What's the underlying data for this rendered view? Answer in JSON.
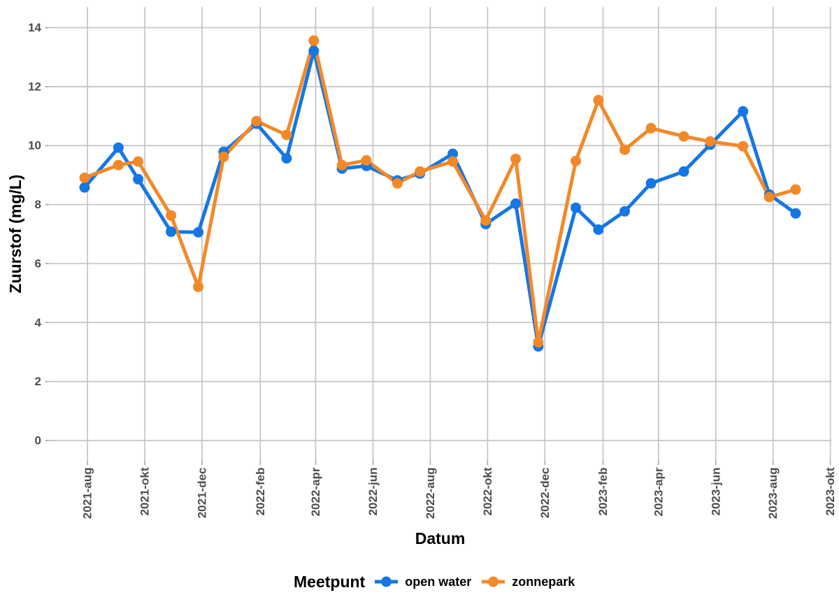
{
  "chart_data": {
    "type": "line",
    "xlabel": "Datum",
    "ylabel": "Zuurstof (mg/L)",
    "xlim": [
      "2021-06-21",
      "2023-10-02"
    ],
    "ylim": [
      -0.7,
      14.7
    ],
    "grid": true,
    "x_ticks": [
      {
        "value": "2021-08-01",
        "label": "2021-aug"
      },
      {
        "value": "2021-10-01",
        "label": "2021-okt"
      },
      {
        "value": "2021-12-01",
        "label": "2021-dec"
      },
      {
        "value": "2022-02-01",
        "label": "2022-feb"
      },
      {
        "value": "2022-04-01",
        "label": "2022-apr"
      },
      {
        "value": "2022-06-01",
        "label": "2022-jun"
      },
      {
        "value": "2022-08-01",
        "label": "2022-aug"
      },
      {
        "value": "2022-10-01",
        "label": "2022-okt"
      },
      {
        "value": "2022-12-01",
        "label": "2022-dec"
      },
      {
        "value": "2023-02-01",
        "label": "2023-feb"
      },
      {
        "value": "2023-04-01",
        "label": "2023-apr"
      },
      {
        "value": "2023-06-01",
        "label": "2023-jun"
      },
      {
        "value": "2023-08-01",
        "label": "2023-aug"
      },
      {
        "value": "2023-10-01",
        "label": "2023-okt"
      }
    ],
    "y_ticks": [
      0,
      2,
      4,
      6,
      8,
      10,
      12,
      14
    ],
    "legend": {
      "title": "Meetpunt",
      "position": "bottom"
    },
    "x": [
      "2021-07-29",
      "2021-09-03",
      "2021-09-24",
      "2021-10-29",
      "2021-11-27",
      "2021-12-24",
      "2022-01-28",
      "2022-03-01",
      "2022-03-30",
      "2022-04-29",
      "2022-05-25",
      "2022-06-27",
      "2022-07-21",
      "2022-08-25",
      "2022-09-29",
      "2022-10-31",
      "2022-11-24",
      "2023-01-03",
      "2023-01-27",
      "2023-02-24",
      "2023-03-24",
      "2023-04-28",
      "2023-05-26",
      "2023-06-30",
      "2023-07-28",
      "2023-08-25"
    ],
    "series": [
      {
        "name": "open water",
        "color": "#1576e5",
        "values": [
          8.58,
          9.93,
          8.86,
          7.08,
          7.06,
          9.79,
          10.74,
          9.57,
          13.21,
          9.22,
          9.31,
          8.82,
          9.05,
          9.72,
          7.34,
          8.03,
          3.19,
          7.89,
          7.15,
          7.77,
          8.72,
          9.12,
          10.03,
          11.16,
          8.34,
          7.7
        ]
      },
      {
        "name": "zonnepark",
        "color": "#f28928",
        "values": [
          8.91,
          9.34,
          9.46,
          7.63,
          5.21,
          9.62,
          10.83,
          10.36,
          13.56,
          9.34,
          9.5,
          8.72,
          9.12,
          9.46,
          7.46,
          9.55,
          3.33,
          9.48,
          11.54,
          9.86,
          10.59,
          10.31,
          10.14,
          9.98,
          8.25,
          8.51
        ]
      }
    ]
  }
}
